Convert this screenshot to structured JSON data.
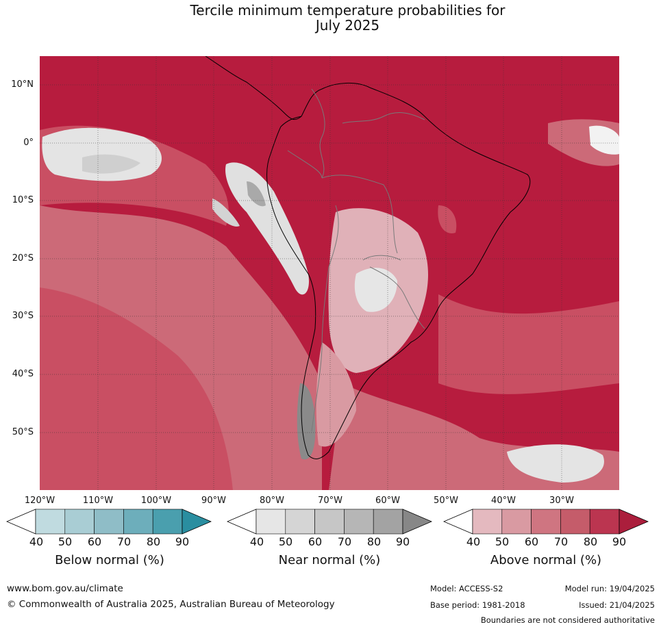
{
  "title": {
    "line1": "Tercile minimum temperature probabilities for",
    "line2": "July 2025"
  },
  "map": {
    "region": "South America",
    "lat_labels": [
      "10°N",
      "0°",
      "10°S",
      "20°S",
      "30°S",
      "40°S",
      "50°S"
    ],
    "lon_labels": [
      "120°W",
      "110°W",
      "100°W",
      "90°W",
      "80°W",
      "70°W",
      "60°W",
      "50°W",
      "40°W",
      "30°W"
    ],
    "colors": {
      "above_dominant": "#b71c3e",
      "above_70": "#c94f63",
      "above_60": "#cc6a78",
      "above_40": "#e0b1b8",
      "near_40": "#e4e4e4",
      "near_60": "#c6c6c6",
      "near_80": "#a5a5a5",
      "background_land_sea": "#b82642"
    }
  },
  "colorbars": [
    {
      "label": "Below normal (%)",
      "ticks": [
        "40",
        "50",
        "60",
        "70",
        "80",
        "90"
      ],
      "colors": [
        "#c0dbe0",
        "#a9cdd4",
        "#8fbdc7",
        "#6daebb",
        "#4a9fae",
        "#2a8ea0"
      ]
    },
    {
      "label": "Near normal (%)",
      "ticks": [
        "40",
        "50",
        "60",
        "70",
        "80",
        "90"
      ],
      "colors": [
        "#e6e6e6",
        "#d5d5d5",
        "#c6c6c6",
        "#b6b6b6",
        "#a3a3a3",
        "#878787"
      ]
    },
    {
      "label": "Above normal (%)",
      "ticks": [
        "40",
        "50",
        "60",
        "70",
        "80",
        "90"
      ],
      "colors": [
        "#e4b9bf",
        "#d99aa2",
        "#cf7581",
        "#c55c6a",
        "#bb3550",
        "#ab1e3c"
      ]
    }
  ],
  "footer": {
    "url": "www.bom.gov.au/climate",
    "copyright": "© Commonwealth of Australia 2025, Australian Bureau of Meteorology",
    "model": "Model: ACCESS-S2",
    "model_run": "Model run: 19/04/2025",
    "base_period": "Base period: 1981-2018",
    "issued": "Issued: 21/04/2025",
    "disclaimer": "Boundaries are not considered authoritative"
  }
}
